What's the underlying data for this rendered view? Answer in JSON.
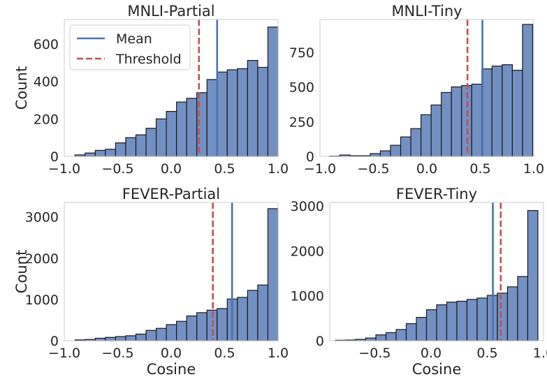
{
  "chart_data": [
    {
      "type": "bar",
      "title": "MNLI-Partial",
      "xlabel": "",
      "ylabel": "Count",
      "xlim": [
        -1.0,
        1.0
      ],
      "ylim": [
        0,
        730
      ],
      "xticks": [
        -1.0,
        -0.5,
        0.0,
        0.5,
        1.0
      ],
      "xtick_labels": [
        "−1.0",
        "−0.5",
        "0.0",
        "0.5",
        "1.0"
      ],
      "yticks": [
        0,
        200,
        400,
        600
      ],
      "ytick_labels": [
        "0",
        "200",
        "400",
        "600"
      ],
      "bin_start": -0.9,
      "bin_width": 0.095,
      "counts": [
        8,
        18,
        32,
        38,
        72,
        100,
        115,
        150,
        200,
        240,
        290,
        310,
        340,
        410,
        450,
        462,
        468,
        512,
        475,
        690
      ],
      "mean": 0.43,
      "threshold": 0.26,
      "grid": false,
      "legend": {
        "placement": "top-left",
        "entries": [
          {
            "label": "Mean",
            "color": "#4c72b0",
            "style": "solid"
          },
          {
            "label": "Threshold",
            "color": "#c44e52",
            "style": "dashed"
          }
        ]
      }
    },
    {
      "type": "bar",
      "title": "MNLI-Tiny",
      "xlabel": "",
      "ylabel": "",
      "xlim": [
        -1.0,
        1.0
      ],
      "ylim": [
        0,
        985
      ],
      "xticks": [
        -1.0,
        -0.5,
        0.0,
        0.5,
        1.0
      ],
      "xtick_labels": [
        "−1.0",
        "−0.5",
        "0.0",
        "0.5",
        "1.0"
      ],
      "yticks": [
        0,
        250,
        500,
        750
      ],
      "ytick_labels": [
        "0",
        "250",
        "500",
        "750"
      ],
      "bin_start": -0.91,
      "bin_width": 0.095,
      "counts": [
        2,
        10,
        5,
        5,
        20,
        40,
        80,
        140,
        200,
        300,
        370,
        460,
        500,
        510,
        520,
        630,
        650,
        660,
        620,
        950
      ],
      "mean": 0.52,
      "threshold": 0.38,
      "grid": false
    },
    {
      "type": "bar",
      "title": "FEVER-Partial",
      "xlabel": "Cosine",
      "ylabel": "Count",
      "xlim": [
        -1.0,
        1.0
      ],
      "ylim": [
        0,
        3350
      ],
      "xticks": [
        -1.0,
        -0.5,
        0.0,
        0.5,
        1.0
      ],
      "xtick_labels": [
        "−1.0",
        "−0.5",
        "0.0",
        "0.5",
        "1.0"
      ],
      "yticks": [
        0,
        1000,
        2000,
        3000
      ],
      "ytick_labels": [
        "0",
        "1000",
        "2000",
        "3000"
      ],
      "bin_start": -0.9,
      "bin_width": 0.095,
      "counts": [
        20,
        30,
        60,
        80,
        100,
        120,
        160,
        250,
        300,
        390,
        470,
        600,
        680,
        740,
        780,
        1010,
        1050,
        1220,
        1350,
        3200
      ],
      "mean": 0.57,
      "threshold": 0.39,
      "grid": false
    },
    {
      "type": "bar",
      "title": "FEVER-Tiny",
      "xlabel": "Cosine",
      "ylabel": "",
      "xlim": [
        -0.9,
        1.0
      ],
      "ylim": [
        0,
        3080
      ],
      "xticks": [
        -0.5,
        0.0,
        0.5,
        1.0
      ],
      "xtick_labels": [
        "−0.5",
        "0.0",
        "0.5",
        "1.0"
      ],
      "yticks": [
        0,
        1000,
        2000,
        3000
      ],
      "ytick_labels": [
        "0",
        "1000",
        "2000",
        "3000"
      ],
      "bin_start": -0.85,
      "bin_width": 0.09,
      "counts": [
        10,
        15,
        30,
        60,
        130,
        180,
        250,
        380,
        520,
        690,
        800,
        860,
        880,
        920,
        950,
        1010,
        1060,
        1200,
        1430,
        2900
      ],
      "mean": 0.55,
      "threshold": 0.62,
      "grid": false
    }
  ],
  "colors": {
    "bar_fill": "#7390c3",
    "bar_edge": "#1a1a1a",
    "mean_line": "#4c72b0",
    "threshold_line": "#c44e52",
    "axes_frame": "#cccccc",
    "text": "#262626"
  }
}
